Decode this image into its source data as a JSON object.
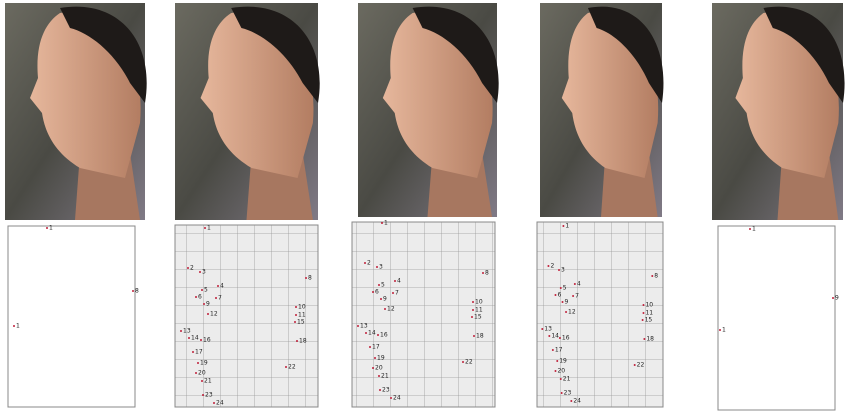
{
  "panels": [
    {
      "labels": [
        "1",
        "8",
        "1"
      ]
    },
    {
      "labels": [
        "1",
        "2",
        "3",
        "4",
        "5",
        "6",
        "7",
        "8",
        "9",
        "10",
        "11",
        "12",
        "13",
        "14",
        "15",
        "16",
        "17",
        "18",
        "19",
        "20",
        "21",
        "22",
        "23",
        "24"
      ]
    },
    {
      "labels": [
        "1",
        "2",
        "3",
        "4",
        "5",
        "6",
        "7",
        "8",
        "9",
        "10",
        "11",
        "12",
        "13",
        "14",
        "15",
        "16",
        "17",
        "18",
        "19",
        "20",
        "21",
        "22",
        "23",
        "24"
      ]
    },
    {
      "labels": [
        "1",
        "2",
        "3",
        "4",
        "5",
        "6",
        "7",
        "8",
        "9",
        "10",
        "11",
        "12",
        "13",
        "14",
        "15",
        "16",
        "17",
        "18",
        "19",
        "20",
        "21",
        "22",
        "23",
        "24"
      ]
    },
    {
      "labels": [
        "1",
        "9",
        "1"
      ]
    }
  ]
}
